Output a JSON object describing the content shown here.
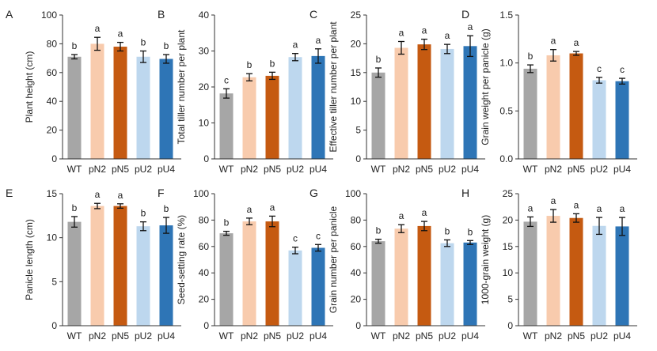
{
  "chart_data": [
    {
      "type": "bar",
      "panel": "A",
      "categories": [
        "WT",
        "pN2",
        "pN5",
        "pU2",
        "pU4"
      ],
      "ylabel": "Plant height (cm)",
      "ylim": [
        0,
        100
      ],
      "yticks": [
        0,
        20,
        40,
        60,
        80,
        100
      ],
      "values": [
        71,
        80,
        78,
        71,
        69.5
      ],
      "errors": [
        1.5,
        4.5,
        3,
        4,
        3
      ],
      "letters": [
        "b",
        "a",
        "a",
        "b",
        "b"
      ],
      "colors": [
        "#a6a6a6",
        "#f8cbad",
        "#c55a11",
        "#bdd7ee",
        "#2e75b6"
      ]
    },
    {
      "type": "bar",
      "panel": "B",
      "categories": [
        "WT",
        "pN2",
        "pN5",
        "pU2",
        "pU4"
      ],
      "ylabel": "Total tiller number per plant",
      "ylim": [
        0,
        40
      ],
      "yticks": [
        0,
        10,
        20,
        30,
        40
      ],
      "values": [
        18.2,
        22.7,
        23.1,
        28.3,
        28.6
      ],
      "errors": [
        1.3,
        1,
        1,
        1,
        2
      ],
      "letters": [
        "c",
        "b",
        "b",
        "a",
        "a"
      ],
      "colors": [
        "#a6a6a6",
        "#f8cbad",
        "#c55a11",
        "#bdd7ee",
        "#2e75b6"
      ]
    },
    {
      "type": "bar",
      "panel": "C",
      "categories": [
        "WT",
        "pN2",
        "pN5",
        "pU2",
        "pU4"
      ],
      "ylabel": "Effective tiller number per plant",
      "ylim": [
        0,
        25
      ],
      "yticks": [
        0,
        5,
        10,
        15,
        20,
        25
      ],
      "values": [
        15,
        19.3,
        19.9,
        19.1,
        19.6
      ],
      "errors": [
        0.8,
        1.1,
        0.9,
        0.8,
        1.8
      ],
      "letters": [
        "b",
        "a",
        "a",
        "a",
        "a"
      ],
      "colors": [
        "#a6a6a6",
        "#f8cbad",
        "#c55a11",
        "#bdd7ee",
        "#2e75b6"
      ]
    },
    {
      "type": "bar",
      "panel": "D",
      "categories": [
        "WT",
        "pN2",
        "pN5",
        "pU2",
        "pU4"
      ],
      "ylabel": "Grain weight per panicle (g)",
      "ylim": [
        0,
        1.5
      ],
      "yticks": [
        0,
        0.5,
        1,
        1.5
      ],
      "ytick_labels": [
        "0.0",
        "0.5",
        "1.0",
        "1.5"
      ],
      "values": [
        0.94,
        1.08,
        1.1,
        0.82,
        0.81
      ],
      "errors": [
        0.04,
        0.06,
        0.02,
        0.03,
        0.03
      ],
      "letters": [
        "b",
        "a",
        "a",
        "c",
        "c"
      ],
      "colors": [
        "#a6a6a6",
        "#f8cbad",
        "#c55a11",
        "#bdd7ee",
        "#2e75b6"
      ]
    },
    {
      "type": "bar",
      "panel": "E",
      "categories": [
        "WT",
        "pN2",
        "pN5",
        "pU2",
        "pU4"
      ],
      "ylabel": "Panicle length (cm)",
      "ylim": [
        0,
        15
      ],
      "yticks": [
        0,
        5,
        10,
        15
      ],
      "values": [
        11.8,
        13.6,
        13.6,
        11.3,
        11.4
      ],
      "errors": [
        0.6,
        0.3,
        0.25,
        0.5,
        0.9
      ],
      "letters": [
        "b",
        "a",
        "a",
        "b",
        "b"
      ],
      "colors": [
        "#a6a6a6",
        "#f8cbad",
        "#c55a11",
        "#bdd7ee",
        "#2e75b6"
      ]
    },
    {
      "type": "bar",
      "panel": "F",
      "categories": [
        "WT",
        "pN2",
        "pN5",
        "pU2",
        "pU4"
      ],
      "ylabel": "Seed-setting rate (%)",
      "ylim": [
        0,
        100
      ],
      "yticks": [
        0,
        20,
        40,
        60,
        80,
        100
      ],
      "values": [
        70,
        79,
        79,
        57,
        59
      ],
      "errors": [
        1.5,
        2.5,
        4,
        2.5,
        2.5
      ],
      "letters": [
        "b",
        "a",
        "a",
        "c",
        "c"
      ],
      "colors": [
        "#a6a6a6",
        "#f8cbad",
        "#c55a11",
        "#bdd7ee",
        "#2e75b6"
      ]
    },
    {
      "type": "bar",
      "panel": "G",
      "categories": [
        "WT",
        "pN2",
        "pN5",
        "pU2",
        "pU4"
      ],
      "ylabel": "Grain number per panicle",
      "ylim": [
        0,
        100
      ],
      "yticks": [
        0,
        20,
        40,
        60,
        80,
        100
      ],
      "values": [
        64,
        73.5,
        75.5,
        62.5,
        63
      ],
      "errors": [
        1.5,
        3,
        3.5,
        2.5,
        1.5
      ],
      "letters": [
        "b",
        "a",
        "a",
        "b",
        "b"
      ],
      "colors": [
        "#a6a6a6",
        "#f8cbad",
        "#c55a11",
        "#bdd7ee",
        "#2e75b6"
      ]
    },
    {
      "type": "bar",
      "panel": "H",
      "categories": [
        "WT",
        "pN2",
        "pN5",
        "pU2",
        "pU4"
      ],
      "ylabel": "1000-grain weight (g)",
      "ylim": [
        0,
        25
      ],
      "yticks": [
        0,
        5,
        10,
        15,
        20,
        25
      ],
      "values": [
        19.7,
        20.8,
        20.4,
        18.9,
        18.8
      ],
      "errors": [
        0.9,
        1.2,
        0.8,
        1.6,
        1.7
      ],
      "letters": [
        "a",
        "a",
        "a",
        "a",
        "a"
      ],
      "colors": [
        "#a6a6a6",
        "#f8cbad",
        "#c55a11",
        "#bdd7ee",
        "#2e75b6"
      ]
    }
  ]
}
